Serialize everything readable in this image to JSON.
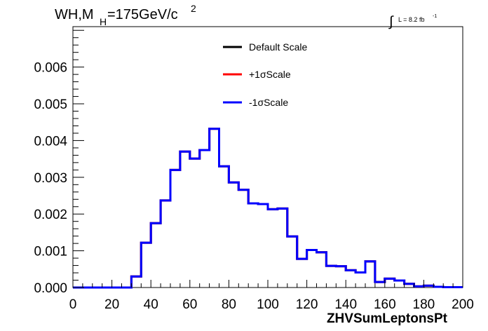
{
  "chart_data": {
    "type": "histogram",
    "title_main": "WH,M",
    "title_sub": "H",
    "title_rest": "=175GeV/c",
    "title_sup": "2",
    "luminosity_label": "L = 8.2 fb",
    "luminosity_sup": "-1",
    "xlabel": "ZHVSumLeptonsPt",
    "ylabel": "",
    "xlim": [
      0,
      200
    ],
    "ylim": [
      0,
      0.0071
    ],
    "x_ticks": [
      "0",
      "20",
      "40",
      "60",
      "80",
      "100",
      "120",
      "140",
      "160",
      "180",
      "200"
    ],
    "y_ticks": [
      "0.000",
      "0.001",
      "0.002",
      "0.003",
      "0.004",
      "0.005",
      "0.006"
    ],
    "bin_edges_start": 0,
    "bin_width": 5,
    "legend_position": "top-center",
    "series": [
      {
        "name": "Default Scale",
        "color": "#000000",
        "values": [
          0,
          0,
          0,
          0,
          0,
          0,
          0.0003,
          0.00122,
          0.00175,
          0.00237,
          0.0032,
          0.0037,
          0.00351,
          0.00374,
          0.00432,
          0.0033,
          0.00286,
          0.00266,
          0.00229,
          0.00227,
          0.00213,
          0.00215,
          0.00139,
          0.00078,
          0.00102,
          0.00096,
          0.00059,
          0.00058,
          0.00047,
          0.00041,
          0.00071,
          0.00015,
          0.00024,
          0.00019,
          0.0001,
          3e-05,
          5e-05,
          2e-05,
          1e-05,
          1e-05
        ]
      },
      {
        "name": "+1σScale",
        "color": "#ff0000",
        "values": [
          0,
          0,
          0,
          0,
          0,
          0,
          0.0003,
          0.00122,
          0.00175,
          0.00237,
          0.0032,
          0.0037,
          0.00351,
          0.00374,
          0.00432,
          0.0033,
          0.00286,
          0.00266,
          0.00229,
          0.00227,
          0.00213,
          0.00215,
          0.00139,
          0.00078,
          0.00102,
          0.00096,
          0.00059,
          0.00058,
          0.00047,
          0.00041,
          0.00071,
          0.00015,
          0.00024,
          0.00019,
          0.0001,
          3e-05,
          5e-05,
          2e-05,
          1e-05,
          1e-05
        ]
      },
      {
        "name": "-1σScale",
        "color": "#0000ff",
        "values": [
          0,
          0,
          0,
          0,
          0,
          0,
          0.0003,
          0.00122,
          0.00175,
          0.00237,
          0.0032,
          0.0037,
          0.00351,
          0.00374,
          0.00432,
          0.0033,
          0.00286,
          0.00266,
          0.00229,
          0.00227,
          0.00213,
          0.00215,
          0.00139,
          0.00078,
          0.00102,
          0.00096,
          0.00059,
          0.00058,
          0.00047,
          0.00041,
          0.00071,
          0.00015,
          0.00024,
          0.00019,
          0.0001,
          3e-05,
          5e-05,
          2e-05,
          1e-05,
          1e-05
        ]
      }
    ]
  }
}
